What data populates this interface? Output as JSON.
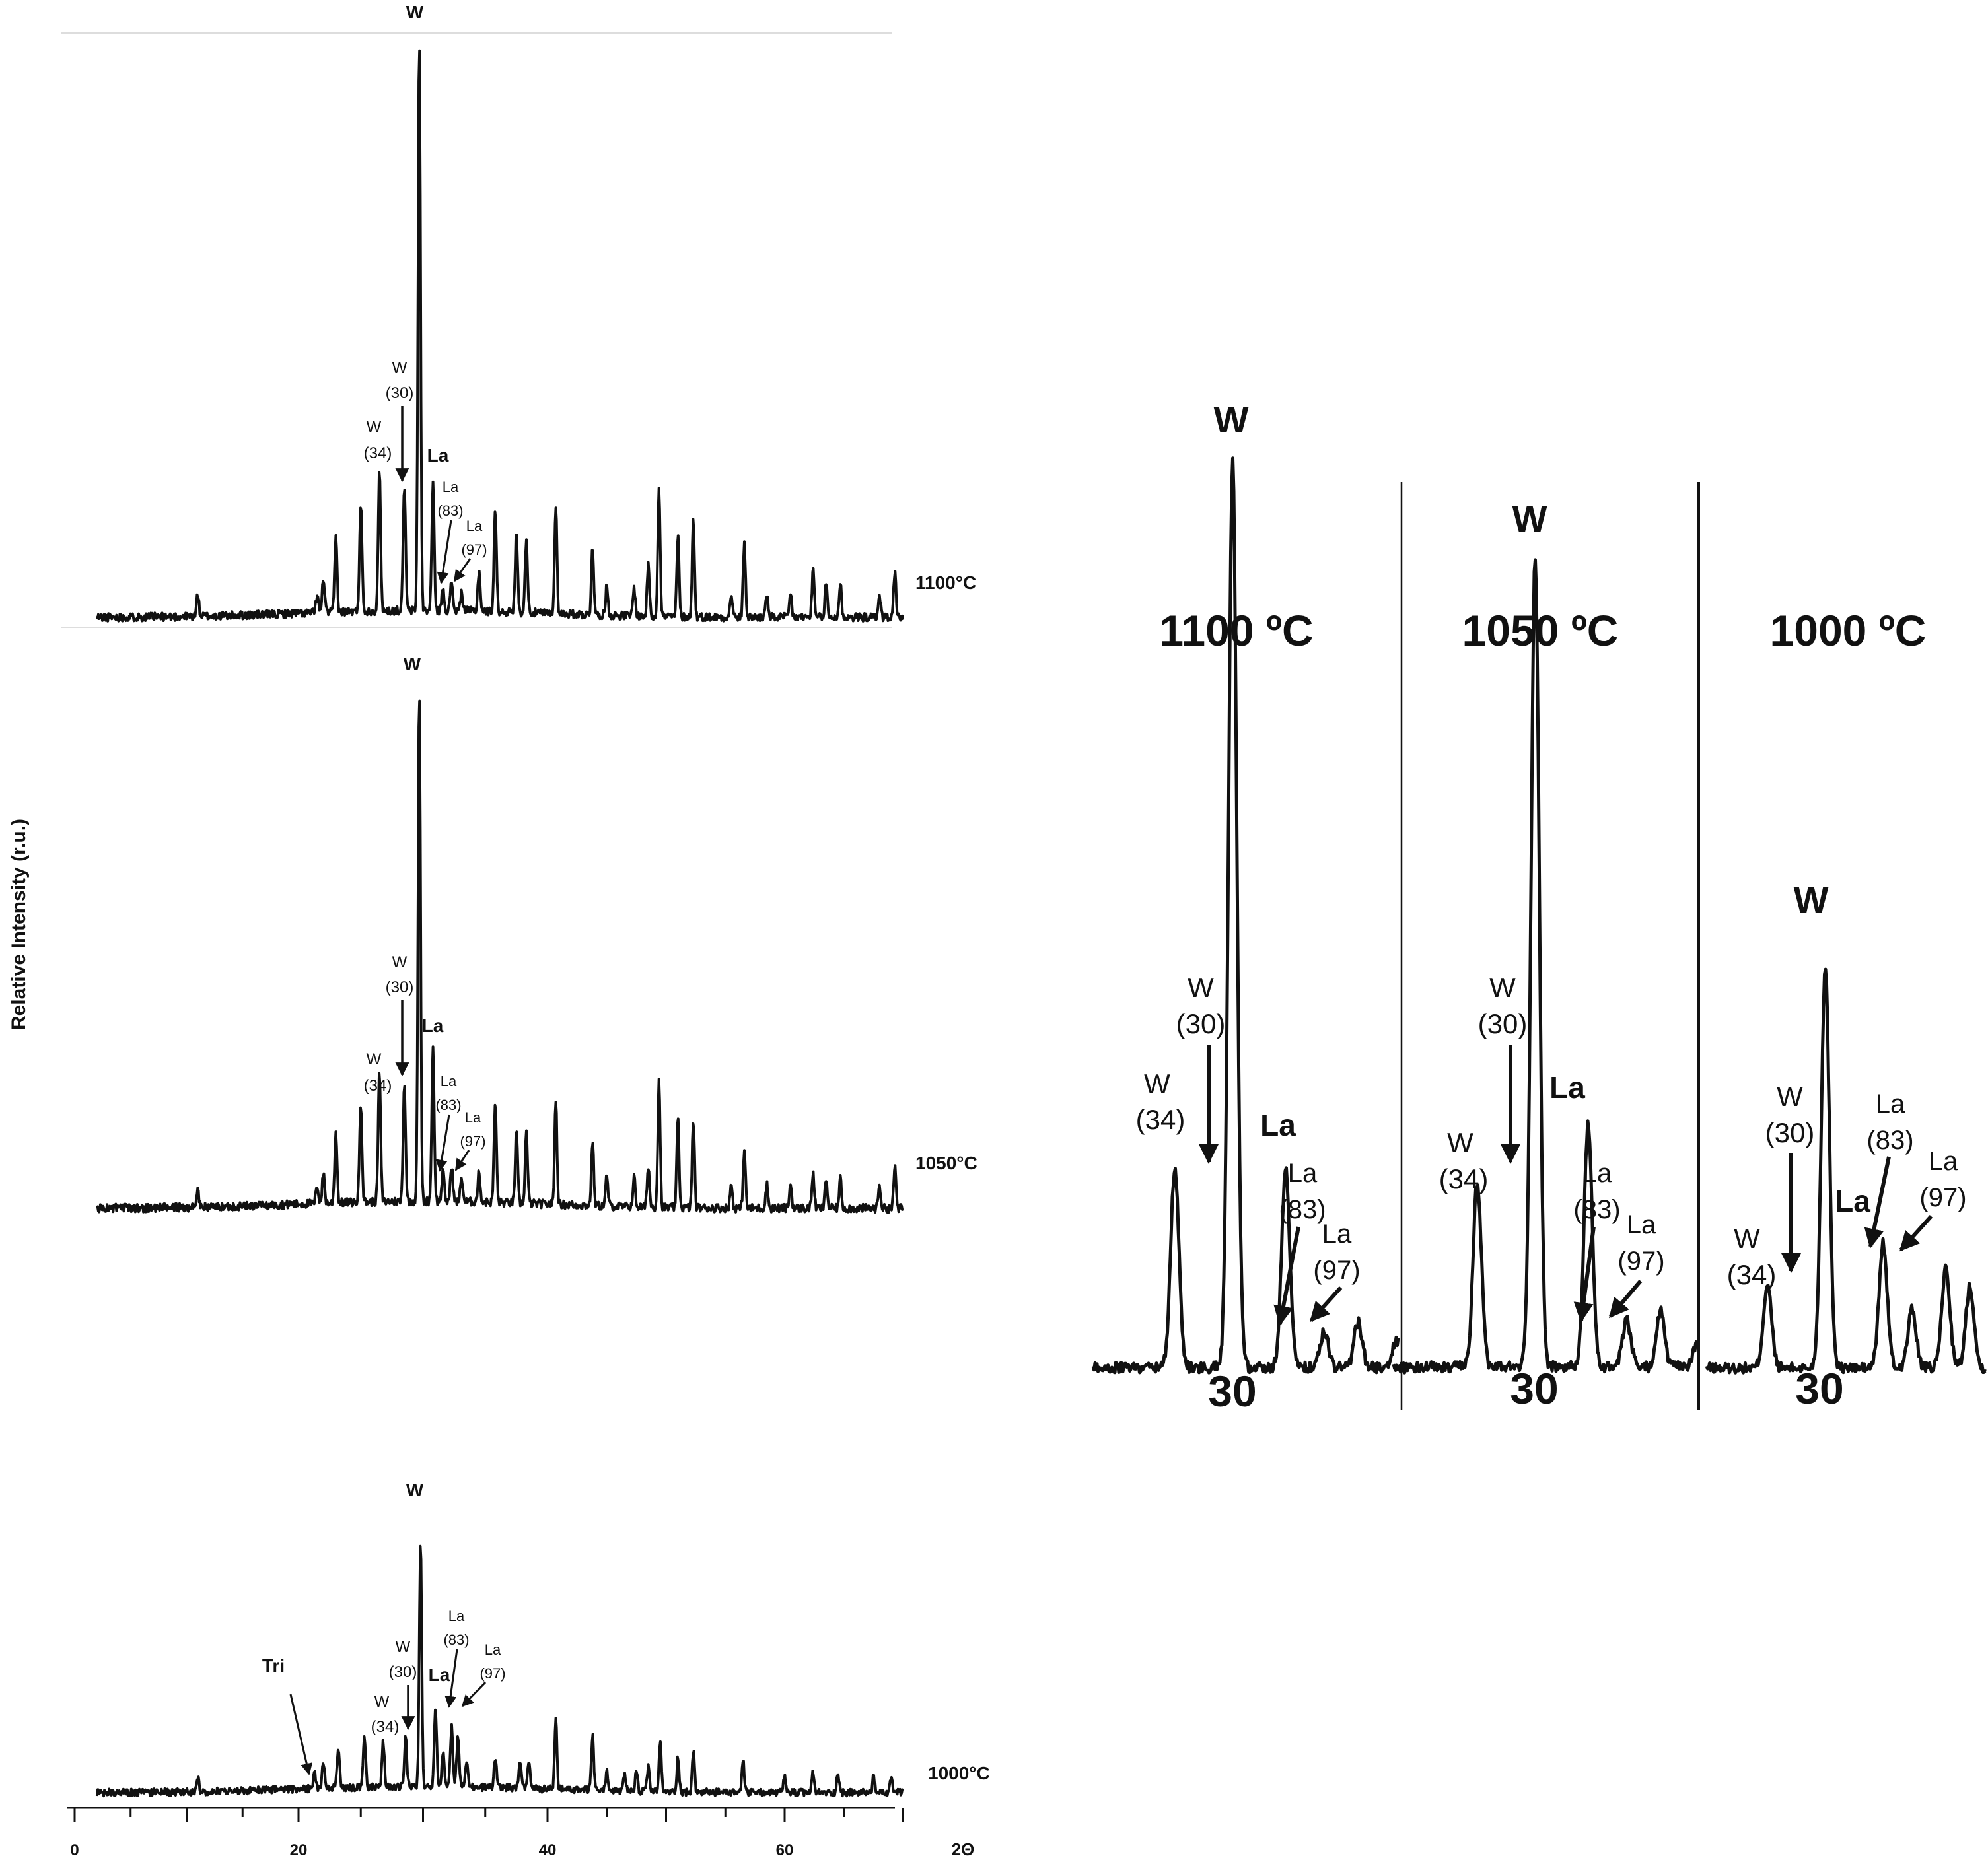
{
  "figure": {
    "ylabel": "Relative Intensity (r.u.)",
    "xlabel": "2Θ",
    "x_ticks": [
      "0",
      "20",
      "40",
      "60"
    ]
  },
  "chart_data": [
    {
      "type": "line",
      "panel": "full-pattern",
      "xlabel": "2Θ",
      "ylabel": "Relative Intensity (r.u.)",
      "xlim": [
        2,
        70
      ],
      "x_ticks": [
        0,
        20,
        40,
        60
      ],
      "series": [
        {
          "name": "1100°C",
          "max_intensity": 1.0,
          "peaks": [
            [
              11.0,
              0.04
            ],
            [
              21.5,
              0.03
            ],
            [
              22.0,
              0.06
            ],
            [
              23.0,
              0.13
            ],
            [
              25.0,
              0.19
            ],
            [
              26.5,
              0.24
            ],
            [
              28.5,
              0.22
            ],
            [
              29.7,
              1.0
            ],
            [
              30.8,
              0.22
            ],
            [
              31.6,
              0.04
            ],
            [
              32.3,
              0.05
            ],
            [
              33.1,
              0.03
            ],
            [
              34.5,
              0.07
            ],
            [
              35.8,
              0.18
            ],
            [
              37.5,
              0.14
            ],
            [
              38.3,
              0.13
            ],
            [
              40.7,
              0.19
            ],
            [
              43.8,
              0.12
            ],
            [
              45.0,
              0.05
            ],
            [
              47.3,
              0.05
            ],
            [
              48.5,
              0.09
            ],
            [
              49.4,
              0.23
            ],
            [
              51.0,
              0.14
            ],
            [
              52.3,
              0.17
            ],
            [
              55.5,
              0.04
            ],
            [
              56.6,
              0.13
            ],
            [
              58.5,
              0.04
            ],
            [
              60.5,
              0.04
            ],
            [
              62.4,
              0.08
            ],
            [
              63.5,
              0.06
            ],
            [
              64.7,
              0.06
            ],
            [
              68.0,
              0.04
            ],
            [
              69.3,
              0.08
            ]
          ]
        },
        {
          "name": "1050°C",
          "max_intensity": 0.87,
          "peaks": [
            [
              11.0,
              0.03
            ],
            [
              21.5,
              0.03
            ],
            [
              22.0,
              0.05
            ],
            [
              23.0,
              0.12
            ],
            [
              25.0,
              0.17
            ],
            [
              26.5,
              0.22
            ],
            [
              28.5,
              0.2
            ],
            [
              29.7,
              0.87
            ],
            [
              30.8,
              0.26
            ],
            [
              31.6,
              0.05
            ],
            [
              32.3,
              0.06
            ],
            [
              33.1,
              0.04
            ],
            [
              34.5,
              0.05
            ],
            [
              35.8,
              0.17
            ],
            [
              37.5,
              0.12
            ],
            [
              38.3,
              0.12
            ],
            [
              40.7,
              0.18
            ],
            [
              43.8,
              0.11
            ],
            [
              45.0,
              0.05
            ],
            [
              47.3,
              0.05
            ],
            [
              48.5,
              0.07
            ],
            [
              49.4,
              0.22
            ],
            [
              51.0,
              0.15
            ],
            [
              52.3,
              0.15
            ],
            [
              55.5,
              0.04
            ],
            [
              56.6,
              0.1
            ],
            [
              58.5,
              0.04
            ],
            [
              60.5,
              0.04
            ],
            [
              62.4,
              0.06
            ],
            [
              63.5,
              0.05
            ],
            [
              64.7,
              0.05
            ],
            [
              68.0,
              0.04
            ],
            [
              69.3,
              0.07
            ]
          ]
        },
        {
          "name": "1000°C",
          "max_intensity": 0.48,
          "peaks": [
            [
              11.0,
              0.03
            ],
            [
              21.3,
              0.03
            ],
            [
              22.0,
              0.05
            ],
            [
              23.2,
              0.08
            ],
            [
              25.3,
              0.1
            ],
            [
              26.8,
              0.09
            ],
            [
              28.6,
              0.1
            ],
            [
              29.8,
              0.48
            ],
            [
              31.0,
              0.15
            ],
            [
              31.6,
              0.07
            ],
            [
              32.3,
              0.12
            ],
            [
              32.8,
              0.1
            ],
            [
              33.5,
              0.05
            ],
            [
              35.8,
              0.06
            ],
            [
              37.8,
              0.05
            ],
            [
              38.5,
              0.05
            ],
            [
              40.7,
              0.14
            ],
            [
              43.8,
              0.11
            ],
            [
              45.0,
              0.04
            ],
            [
              46.5,
              0.03
            ],
            [
              47.5,
              0.04
            ],
            [
              48.5,
              0.05
            ],
            [
              49.5,
              0.1
            ],
            [
              51.0,
              0.07
            ],
            [
              52.3,
              0.08
            ],
            [
              56.5,
              0.06
            ],
            [
              60.0,
              0.03
            ],
            [
              62.4,
              0.04
            ],
            [
              64.5,
              0.04
            ],
            [
              67.5,
              0.03
            ],
            [
              69.0,
              0.03
            ]
          ]
        }
      ]
    },
    {
      "type": "line",
      "panel": "zoom-around-30",
      "x_center_label": "30",
      "series": [
        {
          "name": "1100 ºC",
          "max_intensity": 1.0
        },
        {
          "name": "1050 ºC",
          "max_intensity": 0.87
        },
        {
          "name": "1000 ºC",
          "max_intensity": 0.48
        }
      ]
    }
  ],
  "left_panel": {
    "temps": [
      "1100°C",
      "1050°C",
      "1000°C"
    ],
    "annotations": {
      "w_top": "W",
      "w30_a": "W",
      "w30_b": "(30)",
      "w34_a": "W",
      "w34_b": "(34)",
      "la": "La",
      "la83_a": "La",
      "la83_b": "(83)",
      "la97_a": "La",
      "la97_b": "(97)",
      "tri": "Tri"
    }
  },
  "right_panel": {
    "titles": [
      "1100 ºC",
      "1050 ºC",
      "1000 ºC"
    ],
    "center_label": "30",
    "annotations": {
      "w_top": "W",
      "w30_a": "W",
      "w30_b": "(30)",
      "w34_a": "W",
      "w34_b": "(34)",
      "la": "La",
      "la83_a": "La",
      "la83_b": "(83)",
      "la97_a": "La",
      "la97_b": "(97)"
    }
  }
}
